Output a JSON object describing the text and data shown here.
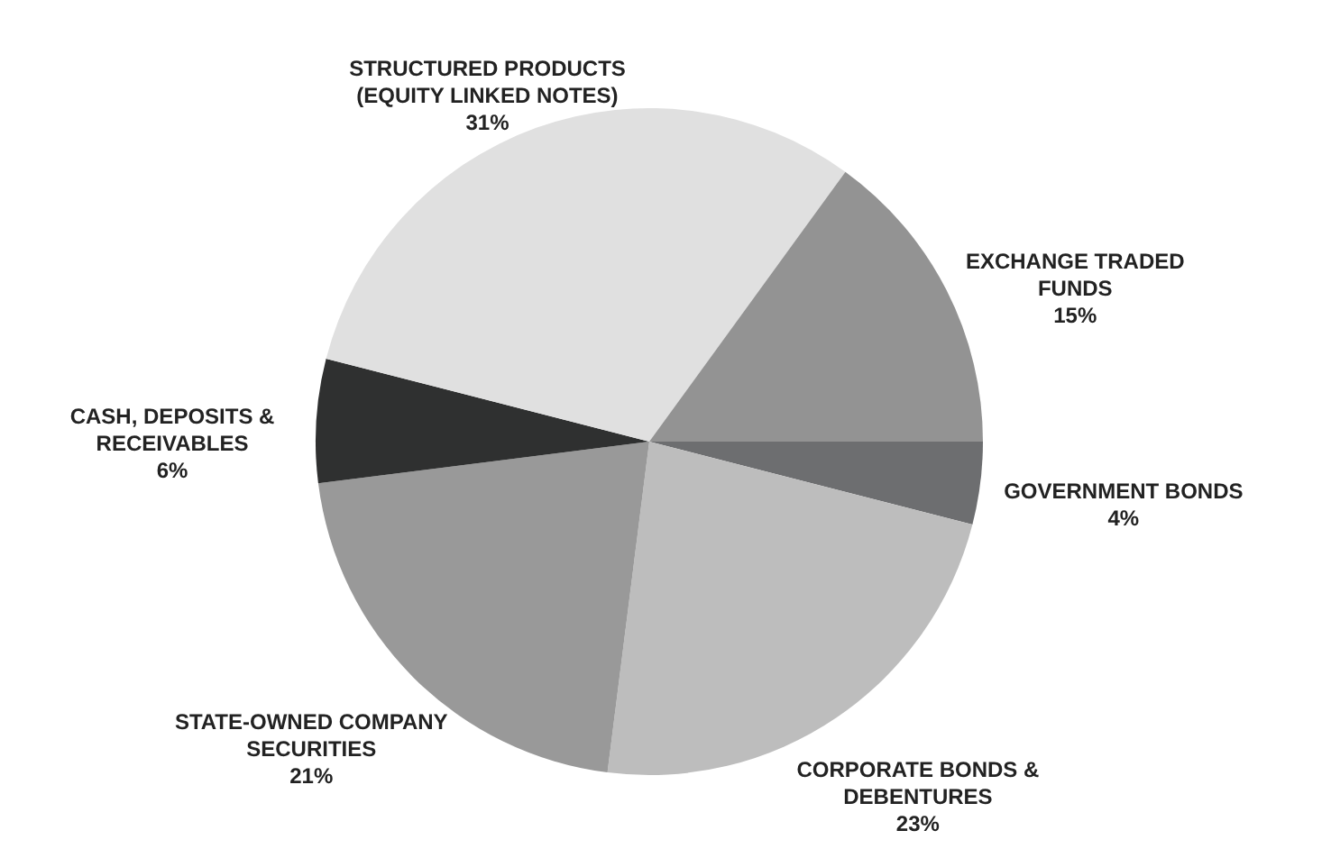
{
  "chart_data": {
    "type": "pie",
    "categories": [
      "GOVERNMENT BONDS",
      "CORPORATE BONDS &\nDEBENTURES",
      "STATE-OWNED COMPANY\nSECURITIES",
      "CASH, DEPOSITS &\nRECEIVABLES",
      "STRUCTURED PRODUCTS\n(EQUITY LINKED NOTES)",
      "EXCHANGE TRADED\nFUNDS"
    ],
    "values": [
      4,
      23,
      21,
      6,
      31,
      15
    ],
    "colors": [
      "#6d6e70",
      "#bdbdbd",
      "#999999",
      "#2f3030",
      "#e0e0e0",
      "#939393"
    ],
    "value_labels": [
      "4%",
      "23%",
      "21%",
      "6%",
      "31%",
      "15%"
    ]
  }
}
